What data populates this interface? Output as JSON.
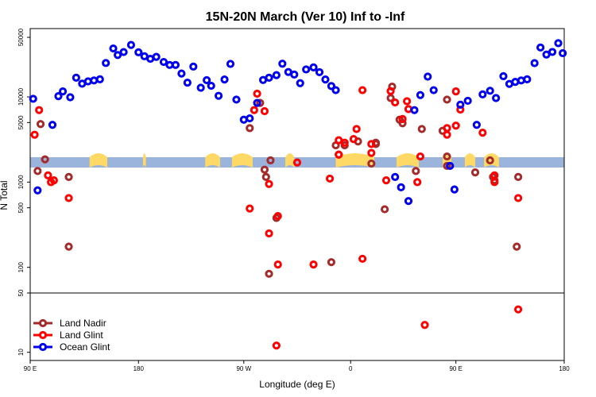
{
  "chart_data": {
    "type": "scatter",
    "title": "15N-20N March (Ver 10)   Inf to -Inf",
    "xlabel": "Longitude (deg E)",
    "ylabel": "N Total",
    "xlim": [
      0,
      360
    ],
    "ylim": [
      8,
      62000
    ],
    "yscale": "log",
    "panel_break": 50,
    "x_ticks": [
      {
        "value": 0,
        "label": "90 E"
      },
      {
        "value": 73,
        "label": "180"
      },
      {
        "value": 144,
        "label": "90 W"
      },
      {
        "value": 216,
        "label": "0"
      },
      {
        "value": 287,
        "label": "90 E"
      },
      {
        "value": 360,
        "label": "180"
      }
    ],
    "y_ticks": [
      {
        "value": 10,
        "label": "10"
      },
      {
        "value": 50,
        "label": "50"
      },
      {
        "value": 100,
        "label": "100"
      },
      {
        "value": 500,
        "label": "500"
      },
      {
        "value": 1000,
        "label": "1000"
      },
      {
        "value": 5000,
        "label": "5000"
      },
      {
        "value": 10000,
        "label": "10000"
      },
      {
        "value": 50000,
        "label": "50000"
      }
    ],
    "legend": {
      "position": "bottom-left"
    },
    "series": [
      {
        "name": "Land Nadir",
        "color": "#a52a2a",
        "points": [
          [
            5,
            1350
          ],
          [
            7,
            4800
          ],
          [
            10,
            1850
          ],
          [
            26,
            1150
          ],
          [
            26,
            175
          ],
          [
            148,
            4300
          ],
          [
            155,
            8500
          ],
          [
            159,
            1150
          ],
          [
            158,
            1400
          ],
          [
            161,
            84
          ],
          [
            162,
            1800
          ],
          [
            166,
            380
          ],
          [
            203,
            115
          ],
          [
            206,
            2700
          ],
          [
            208,
            2100
          ],
          [
            212,
            2700
          ],
          [
            221,
            3000
          ],
          [
            230,
            1650
          ],
          [
            233,
            2800
          ],
          [
            233,
            2900
          ],
          [
            239,
            480
          ],
          [
            243,
            9700
          ],
          [
            244,
            13200
          ],
          [
            249,
            5400
          ],
          [
            251,
            4900
          ],
          [
            260,
            1350
          ],
          [
            264,
            4200
          ],
          [
            278,
            4000
          ],
          [
            281,
            9300
          ],
          [
            281,
            2000
          ],
          [
            281,
            1550
          ],
          [
            300,
            1300
          ],
          [
            310,
            1800
          ],
          [
            312,
            1150
          ],
          [
            313,
            1050
          ],
          [
            329,
            1150
          ],
          [
            328,
            175
          ]
        ]
      },
      {
        "name": "Land Glint",
        "color": "#ff0000",
        "points": [
          [
            3,
            3600
          ],
          [
            6,
            7000
          ],
          [
            12,
            1200
          ],
          [
            14,
            1000
          ],
          [
            16,
            1050
          ],
          [
            26,
            650
          ],
          [
            148,
            490
          ],
          [
            151,
            7000
          ],
          [
            153,
            10900
          ],
          [
            158,
            6800
          ],
          [
            161,
            250
          ],
          [
            161,
            950
          ],
          [
            167,
            400
          ],
          [
            167,
            108
          ],
          [
            180,
            1700
          ],
          [
            191,
            108
          ],
          [
            202,
            1100
          ],
          [
            208,
            3100
          ],
          [
            208,
            2100
          ],
          [
            212,
            2900
          ],
          [
            218,
            3200
          ],
          [
            220,
            4200
          ],
          [
            224,
            126
          ],
          [
            224,
            12000
          ],
          [
            230,
            2800
          ],
          [
            230,
            2200
          ],
          [
            240,
            1050
          ],
          [
            243,
            11700
          ],
          [
            246,
            8600
          ],
          [
            251,
            5500
          ],
          [
            254,
            8900
          ],
          [
            255,
            7200
          ],
          [
            261,
            1000
          ],
          [
            263,
            2000
          ],
          [
            281,
            4300
          ],
          [
            281,
            3600
          ],
          [
            287,
            11600
          ],
          [
            287,
            4600
          ],
          [
            290,
            7100
          ],
          [
            305,
            3800
          ],
          [
            313,
            1200
          ],
          [
            313,
            1000
          ],
          [
            329,
            650
          ],
          [
            329,
            32
          ],
          [
            266,
            21
          ],
          [
            166,
            12
          ]
        ]
      },
      {
        "name": "Ocean Glint",
        "color": "#0000ee",
        "points": [
          [
            2,
            9500
          ],
          [
            5,
            800
          ],
          [
            15,
            4700
          ],
          [
            19,
            10200
          ],
          [
            22,
            11600
          ],
          [
            27,
            9900
          ],
          [
            31,
            16800
          ],
          [
            35,
            14300
          ],
          [
            39,
            15200
          ],
          [
            43,
            15600
          ],
          [
            47,
            16100
          ],
          [
            51,
            25000
          ],
          [
            56,
            37000
          ],
          [
            59,
            31000
          ],
          [
            63,
            33600
          ],
          [
            68,
            40700
          ],
          [
            73,
            33400
          ],
          [
            77,
            30000
          ],
          [
            81,
            28000
          ],
          [
            85,
            29500
          ],
          [
            90,
            25700
          ],
          [
            94,
            23700
          ],
          [
            98,
            23700
          ],
          [
            102,
            18800
          ],
          [
            106,
            14700
          ],
          [
            110,
            22700
          ],
          [
            115,
            12800
          ],
          [
            119,
            15700
          ],
          [
            122,
            13500
          ],
          [
            127,
            10300
          ],
          [
            131,
            16000
          ],
          [
            135,
            24400
          ],
          [
            139,
            9300
          ],
          [
            144,
            5400
          ],
          [
            148,
            5600
          ],
          [
            153,
            8500
          ],
          [
            157,
            15800
          ],
          [
            161,
            16800
          ],
          [
            166,
            18000
          ],
          [
            170,
            24500
          ],
          [
            174,
            19600
          ],
          [
            178,
            18300
          ],
          [
            182,
            14500
          ],
          [
            186,
            21000
          ],
          [
            191,
            22200
          ],
          [
            195,
            19500
          ],
          [
            199,
            16000
          ],
          [
            203,
            13400
          ],
          [
            206,
            12000
          ],
          [
            246,
            1150
          ],
          [
            250,
            870
          ],
          [
            255,
            600
          ],
          [
            259,
            7000
          ],
          [
            263,
            10500
          ],
          [
            268,
            17300
          ],
          [
            272,
            12000
          ],
          [
            283,
            1550
          ],
          [
            286,
            820
          ],
          [
            290,
            8100
          ],
          [
            295,
            9000
          ],
          [
            301,
            4700
          ],
          [
            305,
            10700
          ],
          [
            310,
            11800
          ],
          [
            314,
            9700
          ],
          [
            319,
            17500
          ],
          [
            323,
            14200
          ],
          [
            327,
            15000
          ],
          [
            331,
            15600
          ],
          [
            335,
            16100
          ],
          [
            340,
            24900
          ],
          [
            344,
            38000
          ],
          [
            348,
            31400
          ],
          [
            352,
            33700
          ],
          [
            356,
            42700
          ],
          [
            359,
            32600
          ]
        ]
      }
    ]
  }
}
